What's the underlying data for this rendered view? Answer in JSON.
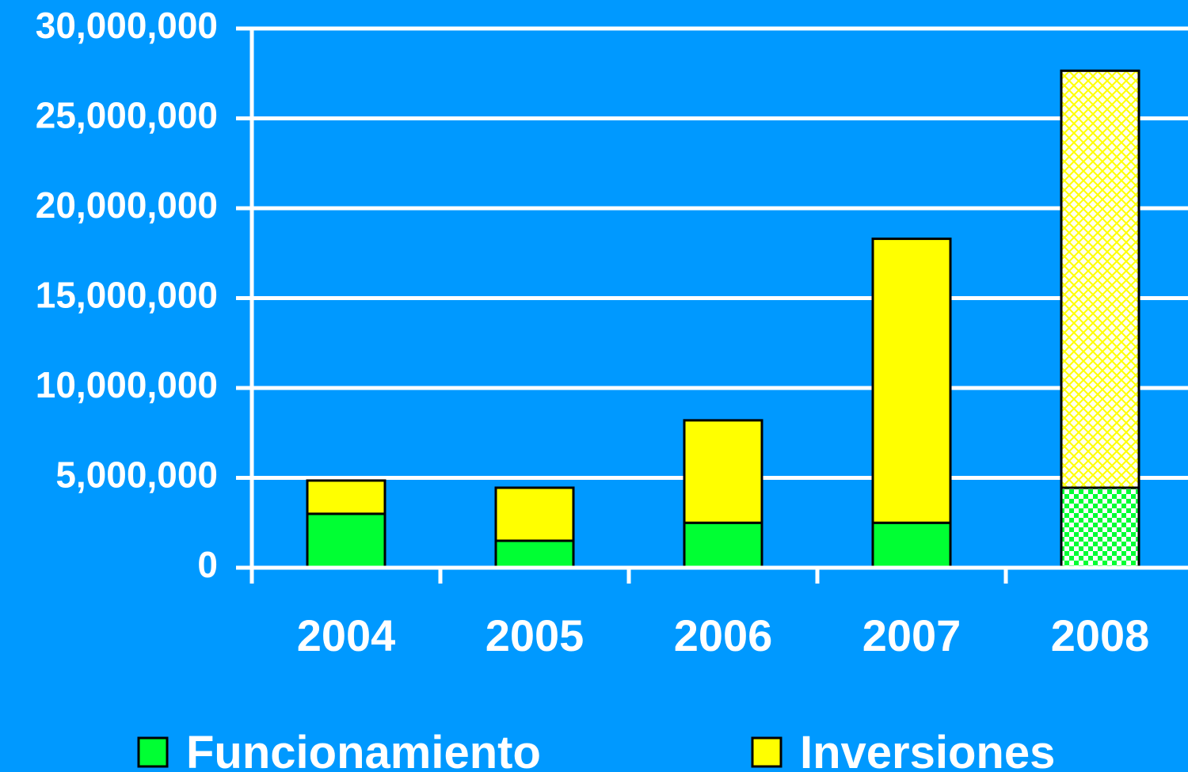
{
  "chart_data": {
    "type": "stacked_bar",
    "categories": [
      "2004",
      "2005",
      "2006",
      "2007",
      "2008"
    ],
    "series": [
      {
        "name": "Funcionamiento",
        "color": "#00ff33",
        "values": [
          3000000,
          1500000,
          2500000,
          2500000,
          4450000
        ]
      },
      {
        "name": "Inversiones",
        "color": "#ffff00",
        "values": [
          1850000,
          2950000,
          5700000,
          15800000,
          23200000
        ]
      }
    ],
    "hatched": [
      false,
      false,
      false,
      false,
      true
    ],
    "ylim": [
      0,
      30000000
    ],
    "yticks": [
      0,
      {
        "value": 5000000,
        "label": "5,000,000"
      },
      {
        "value": 10000000,
        "label": "10,000,000"
      },
      {
        "value": 15000000,
        "label": "15,000,000"
      },
      {
        "value": 20000000,
        "label": "20,000,000"
      },
      {
        "value": 25000000,
        "label": "25,000,000"
      },
      {
        "value": 30000000,
        "label": "30,000,000"
      }
    ],
    "grid": true
  }
}
